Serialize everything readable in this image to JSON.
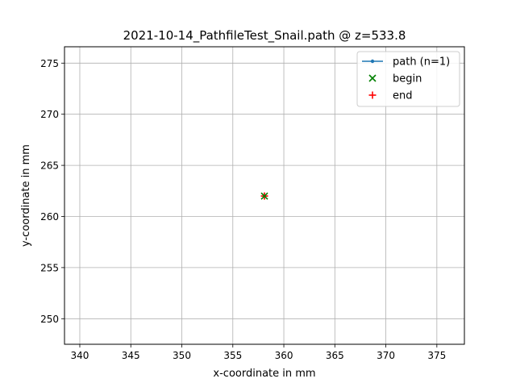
{
  "chart_data": {
    "type": "scatter",
    "title": "2021-10-14_PathfileTest_Snail.path @ z=533.8",
    "xlabel": "x-coordinate in mm",
    "ylabel": "y-coordinate in mm",
    "xlim": [
      338.5,
      377.7
    ],
    "ylim": [
      247.5,
      276.6
    ],
    "xticks": [
      340,
      345,
      350,
      355,
      360,
      365,
      370,
      375
    ],
    "yticks": [
      250,
      255,
      260,
      265,
      270,
      275
    ],
    "grid": true,
    "legend_position": "top-right",
    "series": [
      {
        "name": "path (n=1)",
        "kind": "line-marker",
        "color": "#1f77b4",
        "x": [
          358.1
        ],
        "y": [
          262.0
        ]
      },
      {
        "name": "begin",
        "kind": "x-marker",
        "color": "#008000",
        "x": [
          358.1
        ],
        "y": [
          262.0
        ]
      },
      {
        "name": "end",
        "kind": "plus-marker",
        "color": "#ff0000",
        "x": [
          358.1
        ],
        "y": [
          262.0
        ]
      }
    ]
  }
}
